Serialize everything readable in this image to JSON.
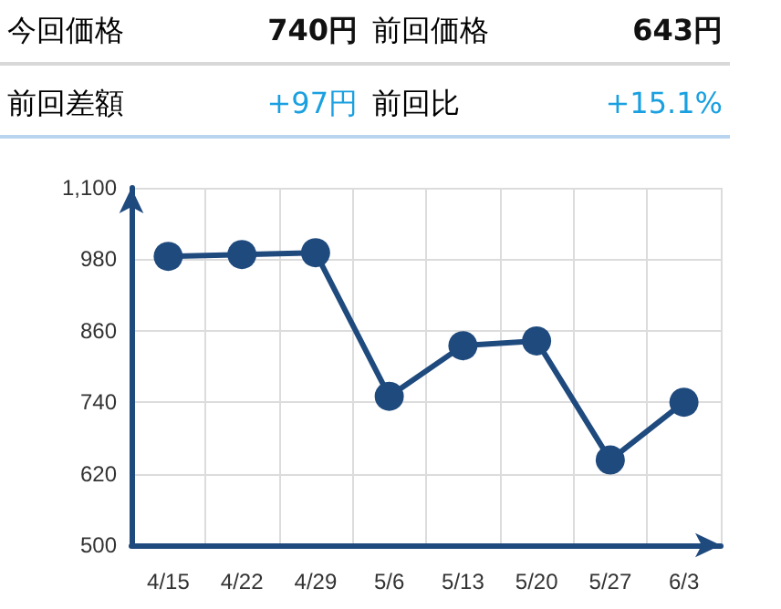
{
  "chart_data": {
    "type": "line",
    "annotations": [
      "今回価格",
      "740円",
      "前回価格",
      "643円",
      "前回差額",
      "+97円",
      "前回比",
      "+15.1%"
    ],
    "categories": [
      "4/15",
      "4/22",
      "4/29",
      "5/6",
      "5/13",
      "5/20",
      "5/27",
      "6/3"
    ],
    "series": [
      {
        "color": "#1f4a7e",
        "values": [
          985,
          988,
          991,
          750,
          835,
          843,
          643,
          740
        ]
      }
    ],
    "ylim": [
      500,
      1100
    ],
    "yticks": [
      500,
      620,
      740,
      860,
      980,
      {
        "value": 1100,
        "label": "1,100"
      }
    ],
    "grid": true,
    "marker": "circle",
    "line_style": "solid"
  }
}
